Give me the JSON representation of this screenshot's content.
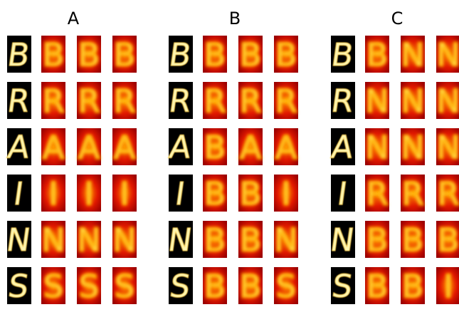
{
  "panels": [
    {
      "title": "A",
      "rows": [
        {
          "input": "B",
          "outputs": [
            "B",
            "B",
            "B"
          ]
        },
        {
          "input": "R",
          "outputs": [
            "R",
            "R",
            "R"
          ]
        },
        {
          "input": "A",
          "outputs": [
            "A",
            "A",
            "A"
          ]
        },
        {
          "input": "I",
          "outputs": [
            "I",
            "I",
            "I"
          ]
        },
        {
          "input": "N",
          "outputs": [
            "N",
            "N",
            "N"
          ]
        },
        {
          "input": "S",
          "outputs": [
            "S",
            "S",
            "S"
          ]
        }
      ]
    },
    {
      "title": "B",
      "rows": [
        {
          "input": "B",
          "outputs": [
            "B",
            "B",
            "B"
          ]
        },
        {
          "input": "R",
          "outputs": [
            "R",
            "R",
            "R"
          ]
        },
        {
          "input": "A",
          "outputs": [
            "B",
            "A",
            "A"
          ]
        },
        {
          "input": "I",
          "outputs": [
            "B",
            "B",
            "I"
          ]
        },
        {
          "input": "N",
          "outputs": [
            "B",
            "B",
            "N"
          ]
        },
        {
          "input": "S",
          "outputs": [
            "B",
            "B",
            "S"
          ]
        }
      ]
    },
    {
      "title": "C",
      "rows": [
        {
          "input": "B",
          "outputs": [
            "B",
            "N",
            "N"
          ]
        },
        {
          "input": "R",
          "outputs": [
            "N",
            "N",
            "N"
          ]
        },
        {
          "input": "A",
          "outputs": [
            "N",
            "N",
            "N"
          ]
        },
        {
          "input": "I",
          "outputs": [
            "R",
            "R",
            "R"
          ]
        },
        {
          "input": "N",
          "outputs": [
            "B",
            "B",
            "B"
          ]
        },
        {
          "input": "S",
          "outputs": [
            "B",
            "B",
            "I"
          ]
        }
      ]
    }
  ]
}
